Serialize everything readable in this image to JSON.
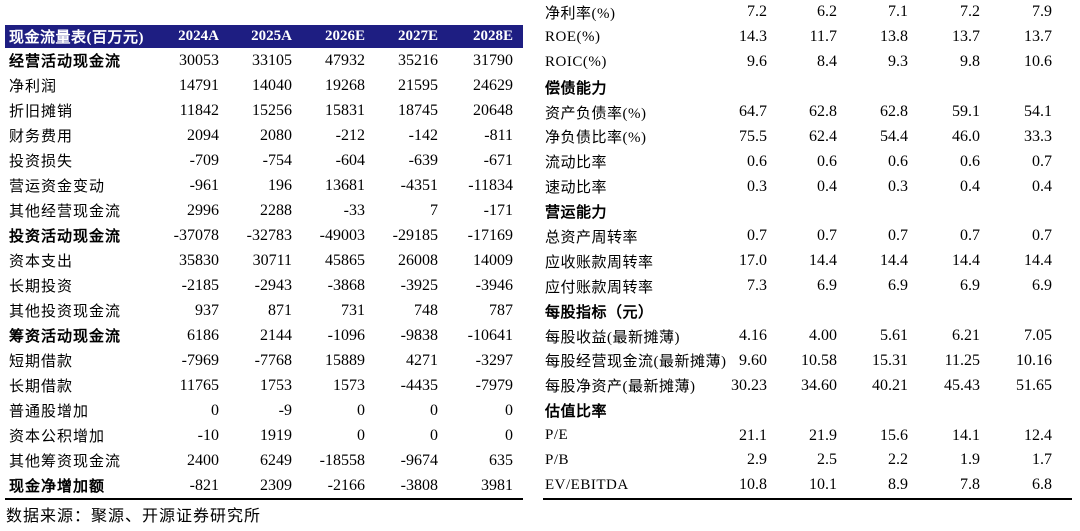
{
  "colors": {
    "header_bg": "#1e1e82",
    "header_text": "#ffffff",
    "body_text": "#000000",
    "rule": "#000000"
  },
  "left_table": {
    "title": "现金流量表(百万元)",
    "columns": [
      "2024A",
      "2025A",
      "2026E",
      "2027E",
      "2028E"
    ],
    "rows": [
      {
        "label": "经营活动现金流",
        "bold": true,
        "values": [
          "30053",
          "33105",
          "47932",
          "35216",
          "31790"
        ]
      },
      {
        "label": "净利润",
        "bold": false,
        "values": [
          "14791",
          "14040",
          "19268",
          "21595",
          "24629"
        ]
      },
      {
        "label": "折旧摊销",
        "bold": false,
        "values": [
          "11842",
          "15256",
          "15831",
          "18745",
          "20648"
        ]
      },
      {
        "label": "财务费用",
        "bold": false,
        "values": [
          "2094",
          "2080",
          "-212",
          "-142",
          "-811"
        ]
      },
      {
        "label": "投资损失",
        "bold": false,
        "values": [
          "-709",
          "-754",
          "-604",
          "-639",
          "-671"
        ]
      },
      {
        "label": "营运资金变动",
        "bold": false,
        "values": [
          "-961",
          "196",
          "13681",
          "-4351",
          "-11834"
        ]
      },
      {
        "label": "其他经营现金流",
        "bold": false,
        "values": [
          "2996",
          "2288",
          "-33",
          "7",
          "-171"
        ]
      },
      {
        "label": "投资活动现金流",
        "bold": true,
        "values": [
          "-37078",
          "-32783",
          "-49003",
          "-29185",
          "-17169"
        ]
      },
      {
        "label": "资本支出",
        "bold": false,
        "values": [
          "35830",
          "30711",
          "45865",
          "26008",
          "14009"
        ]
      },
      {
        "label": "长期投资",
        "bold": false,
        "values": [
          "-2185",
          "-2943",
          "-3868",
          "-3925",
          "-3946"
        ]
      },
      {
        "label": "其他投资现金流",
        "bold": false,
        "values": [
          "937",
          "871",
          "731",
          "748",
          "787"
        ]
      },
      {
        "label": "筹资活动现金流",
        "bold": true,
        "values": [
          "6186",
          "2144",
          "-1096",
          "-9838",
          "-10641"
        ]
      },
      {
        "label": "短期借款",
        "bold": false,
        "values": [
          "-7969",
          "-7768",
          "15889",
          "4271",
          "-3297"
        ]
      },
      {
        "label": "长期借款",
        "bold": false,
        "values": [
          "11765",
          "1753",
          "1573",
          "-4435",
          "-7979"
        ]
      },
      {
        "label": "普通股增加",
        "bold": false,
        "values": [
          "0",
          "-9",
          "0",
          "0",
          "0"
        ]
      },
      {
        "label": "资本公积增加",
        "bold": false,
        "values": [
          "-10",
          "1919",
          "0",
          "0",
          "0"
        ]
      },
      {
        "label": "其他筹资现金流",
        "bold": false,
        "values": [
          "2400",
          "6249",
          "-18558",
          "-9674",
          "635"
        ]
      },
      {
        "label": "现金净增加额",
        "bold": true,
        "values": [
          "-821",
          "2309",
          "-2166",
          "-3808",
          "3981"
        ]
      }
    ],
    "source_note": "数据来源：聚源、开源证券研究所"
  },
  "right_table": {
    "rows": [
      {
        "label": "净利率(%)",
        "bold": false,
        "values": [
          "7.2",
          "6.2",
          "7.1",
          "7.2",
          "7.9"
        ]
      },
      {
        "label": "ROE(%)",
        "bold": false,
        "values": [
          "14.3",
          "11.7",
          "13.8",
          "13.7",
          "13.7"
        ]
      },
      {
        "label": "ROIC(%)",
        "bold": false,
        "values": [
          "9.6",
          "8.4",
          "9.3",
          "9.8",
          "10.6"
        ]
      },
      {
        "label": "偿债能力",
        "bold": true,
        "values": [
          "",
          "",
          "",
          "",
          ""
        ]
      },
      {
        "label": "资产负债率(%)",
        "bold": false,
        "values": [
          "64.7",
          "62.8",
          "62.8",
          "59.1",
          "54.1"
        ]
      },
      {
        "label": "净负债比率(%)",
        "bold": false,
        "values": [
          "75.5",
          "62.4",
          "54.4",
          "46.0",
          "33.3"
        ]
      },
      {
        "label": "流动比率",
        "bold": false,
        "values": [
          "0.6",
          "0.6",
          "0.6",
          "0.6",
          "0.7"
        ]
      },
      {
        "label": "速动比率",
        "bold": false,
        "values": [
          "0.3",
          "0.4",
          "0.3",
          "0.4",
          "0.4"
        ]
      },
      {
        "label": "营运能力",
        "bold": true,
        "values": [
          "",
          "",
          "",
          "",
          ""
        ]
      },
      {
        "label": "总资产周转率",
        "bold": false,
        "values": [
          "0.7",
          "0.7",
          "0.7",
          "0.7",
          "0.7"
        ]
      },
      {
        "label": "应收账款周转率",
        "bold": false,
        "values": [
          "17.0",
          "14.4",
          "14.4",
          "14.4",
          "14.4"
        ]
      },
      {
        "label": "应付账款周转率",
        "bold": false,
        "values": [
          "7.3",
          "6.9",
          "6.9",
          "6.9",
          "6.9"
        ]
      },
      {
        "label": "每股指标（元）",
        "bold": true,
        "values": [
          "",
          "",
          "",
          "",
          ""
        ]
      },
      {
        "label": "每股收益(最新摊薄)",
        "bold": false,
        "values": [
          "4.16",
          "4.00",
          "5.61",
          "6.21",
          "7.05"
        ]
      },
      {
        "label": "每股经营现金流(最新摊薄)",
        "bold": false,
        "values": [
          "9.60",
          "10.58",
          "15.31",
          "11.25",
          "10.16"
        ]
      },
      {
        "label": "每股净资产(最新摊薄)",
        "bold": false,
        "values": [
          "30.23",
          "34.60",
          "40.21",
          "45.43",
          "51.65"
        ]
      },
      {
        "label": "估值比率",
        "bold": true,
        "values": [
          "",
          "",
          "",
          "",
          ""
        ]
      },
      {
        "label": "P/E",
        "bold": false,
        "values": [
          "21.1",
          "21.9",
          "15.6",
          "14.1",
          "12.4"
        ]
      },
      {
        "label": "P/B",
        "bold": false,
        "values": [
          "2.9",
          "2.5",
          "2.2",
          "1.9",
          "1.7"
        ]
      },
      {
        "label": "EV/EBITDA",
        "bold": false,
        "values": [
          "10.8",
          "10.1",
          "8.9",
          "7.8",
          "6.8"
        ]
      }
    ]
  }
}
